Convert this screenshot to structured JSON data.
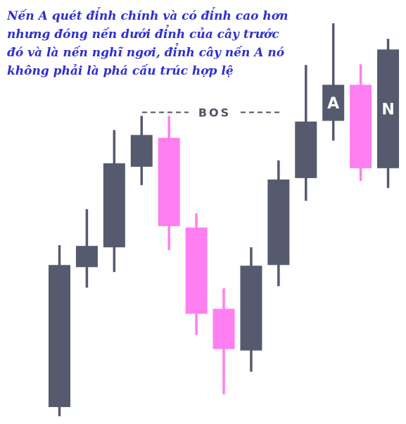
{
  "annotation": "Nến A quét đỉnh chính và có đỉnh cao hơn nhưng đóng nến dưới đỉnh của cây trước đó và là nến nghĩ ngơi, đỉnh cây nến A nó không phải là phá cấu trúc hợp lệ",
  "colors": {
    "annotation_text": "#2f2fd2",
    "bullish": "#555a6e",
    "bearish": "#ff7ef2",
    "bos_line": "#4f5566",
    "candle_letter": "#ffffff"
  },
  "chart_data": {
    "type": "candlestick",
    "title": "",
    "xlabel": "",
    "ylabel": "",
    "grid": false,
    "legend": "none",
    "ylim": [
      0,
      600
    ],
    "candles": [
      {
        "open": 24,
        "close": 225,
        "high": 253,
        "low": 11,
        "direction": "bullish",
        "label": ""
      },
      {
        "open": 222,
        "close": 252,
        "high": 304,
        "low": 193,
        "direction": "bullish",
        "label": ""
      },
      {
        "open": 250,
        "close": 369,
        "high": 416,
        "low": 215,
        "direction": "bullish",
        "label": ""
      },
      {
        "open": 364,
        "close": 409,
        "high": 436,
        "low": 338,
        "direction": "bullish",
        "label": ""
      },
      {
        "open": 405,
        "close": 280,
        "high": 436,
        "low": 246,
        "direction": "bearish",
        "label": ""
      },
      {
        "open": 278,
        "close": 156,
        "high": 298,
        "low": 126,
        "direction": "bearish",
        "label": ""
      },
      {
        "open": 163,
        "close": 106,
        "high": 192,
        "low": 42,
        "direction": "bearish",
        "label": ""
      },
      {
        "open": 104,
        "close": 224,
        "high": 250,
        "low": 74,
        "direction": "bullish",
        "label": ""
      },
      {
        "open": 225,
        "close": 346,
        "high": 373,
        "low": 195,
        "direction": "bullish",
        "label": ""
      },
      {
        "open": 348,
        "close": 428,
        "high": 508,
        "low": 316,
        "direction": "bullish",
        "label": ""
      },
      {
        "open": 429,
        "close": 480,
        "high": 567,
        "low": 401,
        "direction": "bullish",
        "label": "A"
      },
      {
        "open": 480,
        "close": 362,
        "high": 509,
        "low": 344,
        "direction": "bearish",
        "label": ""
      },
      {
        "open": 362,
        "close": 530,
        "high": 545,
        "low": 334,
        "direction": "bullish",
        "label": "N"
      }
    ],
    "bos": {
      "label": "BOS",
      "level": 441
    }
  }
}
